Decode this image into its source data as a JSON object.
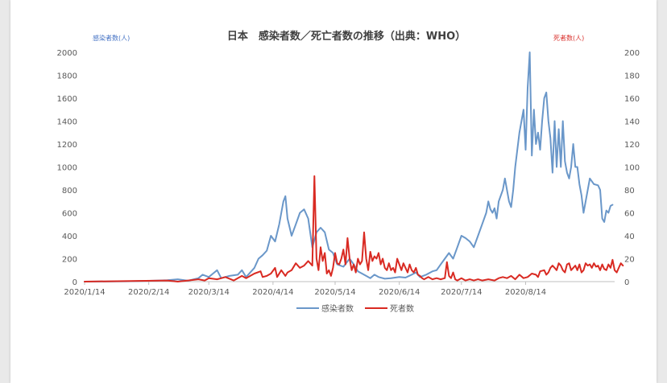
{
  "colors": {
    "infections": "#6a97c9",
    "deaths": "#d92a22",
    "axis": "#bfbfbf",
    "title_text": "#404040",
    "left_unit": "#4472c4",
    "right_unit": "#d9302c"
  },
  "chart_data": {
    "type": "line",
    "title": "日本　感染者数／死亡者数の推移（出典：WHO）",
    "left_axis_label": "感染者数(人)",
    "right_axis_label": "死者数(人)",
    "left_ylim": [
      0,
      2000
    ],
    "right_ylim": [
      0,
      200
    ],
    "left_ticks": [
      "0",
      "200",
      "400",
      "600",
      "800",
      "1000",
      "1200",
      "1400",
      "1600",
      "1800",
      "2000"
    ],
    "right_ticks": [
      "0",
      "20",
      "40",
      "60",
      "80",
      "100",
      "120",
      "140",
      "160",
      "180",
      "200"
    ],
    "x_ticks": [
      "2020/1/14",
      "2020/2/14",
      "2020/3/14",
      "2020/4/14",
      "2020/5/14",
      "2020/6/14",
      "2020/7/14",
      "2020/8/14"
    ],
    "x_tick_days": [
      0,
      31,
      60,
      91,
      121,
      152,
      182,
      213
    ],
    "x_range_days": [
      0,
      256
    ],
    "grid": false,
    "legend_position": "bottom",
    "series": [
      {
        "name": "感染者数",
        "axis": "left",
        "points": [
          [
            0,
            0
          ],
          [
            10,
            1
          ],
          [
            20,
            3
          ],
          [
            30,
            6
          ],
          [
            36,
            10
          ],
          [
            40,
            12
          ],
          [
            45,
            20
          ],
          [
            50,
            8
          ],
          [
            55,
            30
          ],
          [
            57,
            60
          ],
          [
            60,
            40
          ],
          [
            62,
            70
          ],
          [
            64,
            100
          ],
          [
            66,
            30
          ],
          [
            70,
            50
          ],
          [
            74,
            60
          ],
          [
            76,
            100
          ],
          [
            78,
            40
          ],
          [
            82,
            120
          ],
          [
            84,
            200
          ],
          [
            86,
            230
          ],
          [
            88,
            270
          ],
          [
            90,
            400
          ],
          [
            92,
            350
          ],
          [
            94,
            500
          ],
          [
            95,
            600
          ],
          [
            96,
            700
          ],
          [
            97,
            745
          ],
          [
            98,
            550
          ],
          [
            100,
            400
          ],
          [
            102,
            500
          ],
          [
            104,
            600
          ],
          [
            106,
            630
          ],
          [
            108,
            550
          ],
          [
            110,
            300
          ],
          [
            112,
            430
          ],
          [
            114,
            470
          ],
          [
            116,
            430
          ],
          [
            118,
            280
          ],
          [
            120,
            250
          ],
          [
            122,
            150
          ],
          [
            125,
            130
          ],
          [
            128,
            200
          ],
          [
            130,
            150
          ],
          [
            132,
            90
          ],
          [
            134,
            70
          ],
          [
            136,
            50
          ],
          [
            138,
            30
          ],
          [
            140,
            60
          ],
          [
            142,
            40
          ],
          [
            145,
            25
          ],
          [
            148,
            30
          ],
          [
            152,
            40
          ],
          [
            155,
            35
          ],
          [
            158,
            60
          ],
          [
            160,
            80
          ],
          [
            162,
            40
          ],
          [
            165,
            60
          ],
          [
            168,
            90
          ],
          [
            170,
            100
          ],
          [
            172,
            150
          ],
          [
            174,
            200
          ],
          [
            176,
            250
          ],
          [
            178,
            200
          ],
          [
            180,
            300
          ],
          [
            182,
            400
          ],
          [
            184,
            380
          ],
          [
            186,
            350
          ],
          [
            188,
            300
          ],
          [
            190,
            400
          ],
          [
            192,
            500
          ],
          [
            194,
            600
          ],
          [
            195,
            700
          ],
          [
            196,
            630
          ],
          [
            197,
            600
          ],
          [
            198,
            640
          ],
          [
            199,
            550
          ],
          [
            200,
            700
          ],
          [
            202,
            800
          ],
          [
            203,
            900
          ],
          [
            205,
            700
          ],
          [
            206,
            650
          ],
          [
            207,
            800
          ],
          [
            208,
            1000
          ],
          [
            210,
            1300
          ],
          [
            212,
            1500
          ],
          [
            213,
            1150
          ],
          [
            214,
            1690
          ],
          [
            215,
            2000
          ],
          [
            216,
            1100
          ],
          [
            217,
            1500
          ],
          [
            218,
            1200
          ],
          [
            219,
            1300
          ],
          [
            220,
            1150
          ],
          [
            221,
            1400
          ],
          [
            222,
            1600
          ],
          [
            223,
            1650
          ],
          [
            224,
            1400
          ],
          [
            225,
            1250
          ],
          [
            226,
            950
          ],
          [
            227,
            1400
          ],
          [
            228,
            1000
          ],
          [
            229,
            1330
          ],
          [
            230,
            1000
          ],
          [
            231,
            1400
          ],
          [
            232,
            1050
          ],
          [
            233,
            950
          ],
          [
            234,
            900
          ],
          [
            235,
            1000
          ],
          [
            236,
            1200
          ],
          [
            237,
            1000
          ],
          [
            238,
            1000
          ],
          [
            239,
            850
          ],
          [
            240,
            750
          ],
          [
            241,
            600
          ],
          [
            242,
            700
          ],
          [
            244,
            900
          ],
          [
            246,
            850
          ],
          [
            248,
            840
          ],
          [
            249,
            800
          ],
          [
            250,
            550
          ],
          [
            251,
            520
          ],
          [
            252,
            620
          ],
          [
            253,
            600
          ],
          [
            254,
            660
          ],
          [
            255,
            670
          ]
        ]
      },
      {
        "name": "死者数",
        "axis": "right",
        "points": [
          [
            0,
            0
          ],
          [
            40,
            1
          ],
          [
            45,
            0
          ],
          [
            50,
            1
          ],
          [
            55,
            2
          ],
          [
            58,
            1
          ],
          [
            60,
            3
          ],
          [
            64,
            2
          ],
          [
            68,
            4
          ],
          [
            72,
            1
          ],
          [
            76,
            5
          ],
          [
            78,
            3
          ],
          [
            82,
            7
          ],
          [
            85,
            9
          ],
          [
            86,
            4
          ],
          [
            88,
            5
          ],
          [
            90,
            7
          ],
          [
            92,
            12
          ],
          [
            93,
            4
          ],
          [
            95,
            10
          ],
          [
            97,
            5
          ],
          [
            98,
            8
          ],
          [
            100,
            10
          ],
          [
            102,
            16
          ],
          [
            104,
            12
          ],
          [
            106,
            14
          ],
          [
            108,
            18
          ],
          [
            110,
            14
          ],
          [
            111,
            92
          ],
          [
            112,
            20
          ],
          [
            113,
            10
          ],
          [
            114,
            30
          ],
          [
            115,
            18
          ],
          [
            116,
            25
          ],
          [
            117,
            7
          ],
          [
            118,
            10
          ],
          [
            119,
            5
          ],
          [
            120,
            12
          ],
          [
            121,
            25
          ],
          [
            122,
            16
          ],
          [
            123,
            15
          ],
          [
            124,
            20
          ],
          [
            125,
            28
          ],
          [
            126,
            15
          ],
          [
            127,
            38
          ],
          [
            128,
            20
          ],
          [
            129,
            10
          ],
          [
            130,
            15
          ],
          [
            131,
            8
          ],
          [
            132,
            20
          ],
          [
            133,
            15
          ],
          [
            134,
            18
          ],
          [
            135,
            43
          ],
          [
            136,
            20
          ],
          [
            137,
            10
          ],
          [
            138,
            26
          ],
          [
            139,
            18
          ],
          [
            140,
            22
          ],
          [
            141,
            20
          ],
          [
            142,
            25
          ],
          [
            143,
            15
          ],
          [
            144,
            20
          ],
          [
            145,
            12
          ],
          [
            146,
            10
          ],
          [
            147,
            16
          ],
          [
            148,
            10
          ],
          [
            149,
            12
          ],
          [
            150,
            8
          ],
          [
            151,
            20
          ],
          [
            152,
            15
          ],
          [
            153,
            10
          ],
          [
            154,
            16
          ],
          [
            155,
            12
          ],
          [
            156,
            8
          ],
          [
            157,
            15
          ],
          [
            158,
            10
          ],
          [
            159,
            8
          ],
          [
            160,
            12
          ],
          [
            161,
            6
          ],
          [
            162,
            5
          ],
          [
            163,
            3
          ],
          [
            164,
            2
          ],
          [
            166,
            4
          ],
          [
            168,
            2
          ],
          [
            170,
            3
          ],
          [
            172,
            2
          ],
          [
            174,
            3
          ],
          [
            175,
            17
          ],
          [
            176,
            5
          ],
          [
            177,
            3
          ],
          [
            178,
            8
          ],
          [
            179,
            2
          ],
          [
            180,
            1
          ],
          [
            182,
            3
          ],
          [
            184,
            1
          ],
          [
            186,
            2
          ],
          [
            188,
            1
          ],
          [
            190,
            2
          ],
          [
            192,
            1
          ],
          [
            195,
            2
          ],
          [
            198,
            1
          ],
          [
            200,
            3
          ],
          [
            202,
            4
          ],
          [
            204,
            3
          ],
          [
            206,
            5
          ],
          [
            208,
            2
          ],
          [
            210,
            6
          ],
          [
            212,
            3
          ],
          [
            214,
            4
          ],
          [
            216,
            7
          ],
          [
            218,
            6
          ],
          [
            219,
            4
          ],
          [
            220,
            9
          ],
          [
            222,
            10
          ],
          [
            223,
            6
          ],
          [
            224,
            8
          ],
          [
            225,
            12
          ],
          [
            226,
            14
          ],
          [
            227,
            12
          ],
          [
            228,
            10
          ],
          [
            229,
            16
          ],
          [
            230,
            14
          ],
          [
            231,
            10
          ],
          [
            232,
            8
          ],
          [
            233,
            15
          ],
          [
            234,
            16
          ],
          [
            235,
            10
          ],
          [
            236,
            12
          ],
          [
            237,
            14
          ],
          [
            238,
            10
          ],
          [
            239,
            15
          ],
          [
            240,
            8
          ],
          [
            241,
            10
          ],
          [
            242,
            16
          ],
          [
            243,
            14
          ],
          [
            244,
            15
          ],
          [
            245,
            12
          ],
          [
            246,
            16
          ],
          [
            247,
            13
          ],
          [
            248,
            14
          ],
          [
            249,
            10
          ],
          [
            250,
            15
          ],
          [
            251,
            11
          ],
          [
            252,
            10
          ],
          [
            253,
            15
          ],
          [
            254,
            12
          ],
          [
            255,
            19
          ],
          [
            256,
            10
          ],
          [
            257,
            8
          ],
          [
            258,
            12
          ],
          [
            259,
            16
          ],
          [
            260,
            14
          ]
        ]
      }
    ]
  }
}
